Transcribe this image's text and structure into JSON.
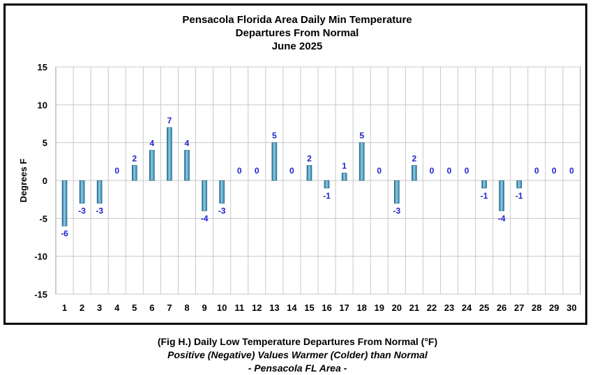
{
  "chart_data": {
    "type": "bar",
    "title": [
      "Pensacola Florida Area Daily Min Temperature",
      "Departures From Normal",
      "June 2025"
    ],
    "ylabel": "Degrees F",
    "xlabel": "",
    "ylim": [
      -15,
      15
    ],
    "yticks": [
      15,
      10,
      5,
      0,
      -5,
      -10,
      -15
    ],
    "grid": true,
    "legend": "none",
    "categories": [
      "1",
      "2",
      "3",
      "4",
      "5",
      "6",
      "7",
      "8",
      "9",
      "10",
      "11",
      "12",
      "13",
      "14",
      "15",
      "16",
      "17",
      "18",
      "19",
      "20",
      "21",
      "22",
      "23",
      "24",
      "25",
      "26",
      "27",
      "28",
      "29",
      "30"
    ],
    "values": [
      -6,
      -3,
      -3,
      0,
      2,
      4,
      7,
      4,
      -4,
      -3,
      0,
      0,
      5,
      0,
      2,
      -1,
      1,
      5,
      0,
      -3,
      2,
      0,
      0,
      0,
      -1,
      -4,
      -1,
      0,
      0,
      0
    ],
    "colors": {
      "bar": "#4a9ec4",
      "bar_dark": "#1f5f80",
      "label": "#1f1fd0",
      "grid": "#c8c8c8"
    }
  },
  "caption": {
    "line1": "(Fig H.) Daily Low Temperature Departures From Normal (°F)",
    "line2": "Positive (Negative) Values Warmer (Colder) than Normal",
    "line3": "- Pensacola FL Area -"
  }
}
